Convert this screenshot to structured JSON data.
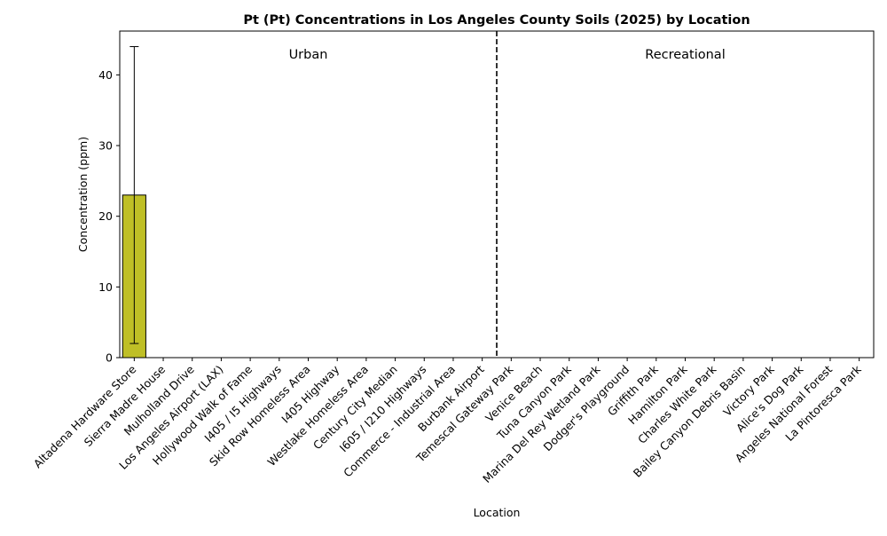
{
  "chart_data": {
    "type": "bar",
    "title": "Pt (Pt) Concentrations in Los Angeles County Soils (2025) by Location",
    "xlabel": "Location",
    "ylabel": "Concentration (ppm)",
    "ylim": [
      0,
      46.2
    ],
    "yticks": [
      "0",
      "10",
      "20",
      "30",
      "40"
    ],
    "grid": false,
    "categories": [
      "Altadena Hardware Store",
      "Sierra Madre House",
      "Mulholland Drive",
      "Los Angeles Airport (LAX)",
      "Hollywood Walk of Fame",
      "I405 / I5 Highways",
      "Skid Row Homeless Area",
      "I405 Highway",
      "Westlake Homeless Area",
      "Century City Median",
      "I605 / I210 Highways",
      "Commerce - Industrial Area",
      "Burbank Airport",
      "Temescal Gateway Park",
      "Venice Beach",
      "Tuna Canyon Park",
      "Marina Del Rey Wetland Park",
      "Dodger's Playground",
      "Griffith Park",
      "Hamilton Park",
      "Charles White Park",
      "Bailey Canyon Debris Basin",
      "Victory Park",
      "Alice's Dog Park",
      "Angeles National Forest",
      "La Pintoresca Park"
    ],
    "values": [
      23,
      null,
      null,
      null,
      null,
      null,
      null,
      null,
      null,
      null,
      null,
      null,
      null,
      null,
      null,
      null,
      null,
      null,
      null,
      null,
      null,
      null,
      null,
      null,
      null,
      null
    ],
    "error_low": [
      2,
      null,
      null,
      null,
      null,
      null,
      null,
      null,
      null,
      null,
      null,
      null,
      null,
      null,
      null,
      null,
      null,
      null,
      null,
      null,
      null,
      null,
      null,
      null,
      null,
      null
    ],
    "error_high": [
      44,
      null,
      null,
      null,
      null,
      null,
      null,
      null,
      null,
      null,
      null,
      null,
      null,
      null,
      null,
      null,
      null,
      null,
      null,
      null,
      null,
      null,
      null,
      null,
      null,
      null
    ],
    "bar_color": "#bfbf26",
    "group_divider_after": "Burbank Airport",
    "groups": [
      "Urban",
      "Recreational"
    ]
  }
}
